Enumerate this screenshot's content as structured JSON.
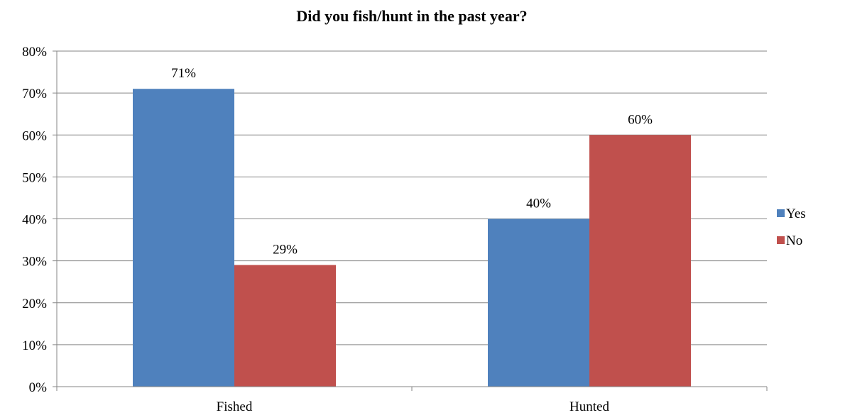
{
  "chart_data": {
    "type": "bar",
    "title": "Did you fish/hunt in the past year?",
    "categories": [
      "Fished",
      "Hunted"
    ],
    "series": [
      {
        "name": "Yes",
        "values": [
          71,
          40
        ],
        "color": "#4F81BD"
      },
      {
        "name": "No",
        "values": [
          29,
          60
        ],
        "color": "#C0504D"
      }
    ],
    "data_labels": [
      [
        "71%",
        "40%"
      ],
      [
        "29%",
        "60%"
      ]
    ],
    "y_ticks": [
      0,
      10,
      20,
      30,
      40,
      50,
      60,
      70,
      80
    ],
    "y_tick_labels": [
      "0%",
      "10%",
      "20%",
      "30%",
      "40%",
      "50%",
      "60%",
      "70%",
      "80%"
    ],
    "ylim": [
      0,
      80
    ],
    "xlabel": "",
    "ylabel": "",
    "grid": true,
    "legend_position": "right"
  }
}
